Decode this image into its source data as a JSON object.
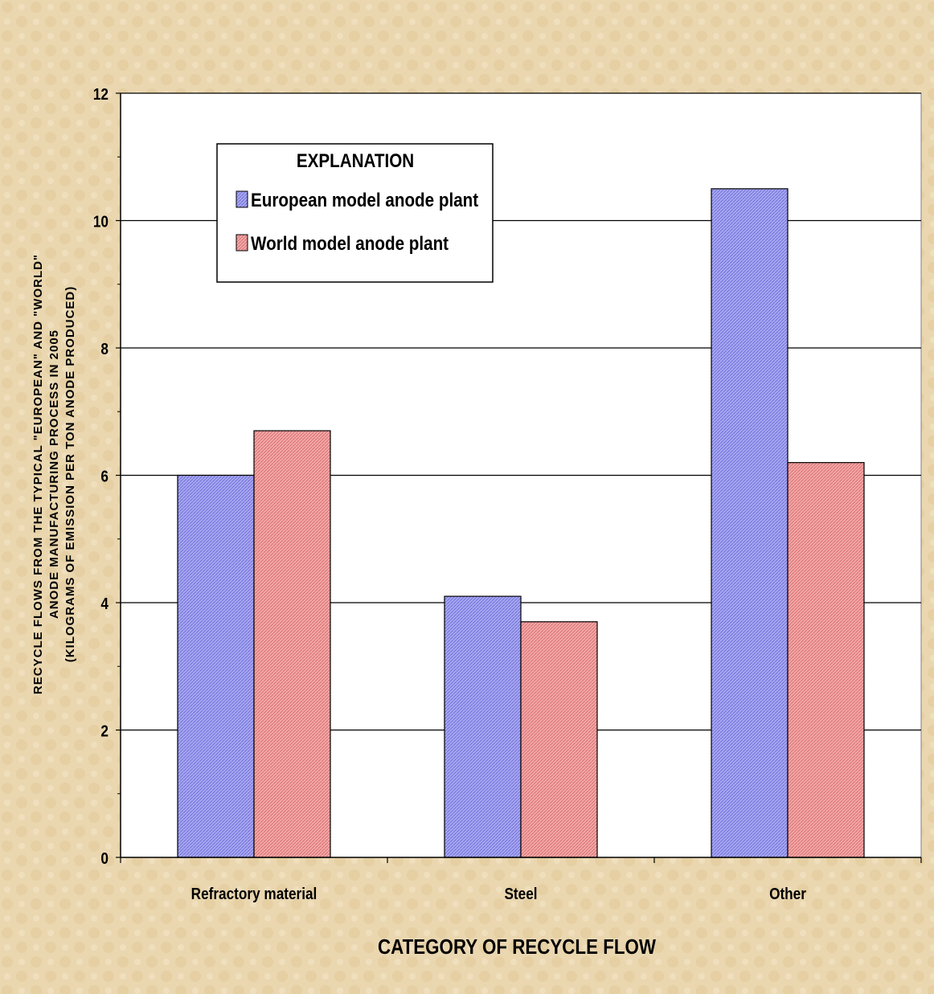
{
  "chart_data": {
    "type": "bar",
    "categories": [
      "Refractory material",
      "Steel",
      "Other"
    ],
    "series": [
      {
        "name": "European model anode plant",
        "values": [
          6.0,
          4.1,
          10.5
        ],
        "color": "#9a9aee"
      },
      {
        "name": "World model anode plant",
        "values": [
          6.7,
          3.7,
          6.2
        ],
        "color": "#ef9d9d"
      }
    ],
    "ylim": [
      0,
      12
    ],
    "yticks": [
      0,
      2,
      4,
      6,
      8,
      10,
      12
    ],
    "grid": true,
    "xlabel": "CATEGORY OF RECYCLE FLOW",
    "ylabel_lines": [
      "RECYCLE FLOWS FROM THE TYPICAL \"EUROPEAN\" AND \"WORLD\"",
      "ANODE MANUFACTURING PROCESS IN 2005",
      "(KILOGRAMS OF EMISSION PER TON ANODE PRODUCED)"
    ],
    "legend": {
      "title": "EXPLANATION",
      "placement": "top-left"
    },
    "colors": {
      "background": "#ead7b0",
      "plot_background": "#ffffff",
      "grid": "#000000"
    }
  }
}
